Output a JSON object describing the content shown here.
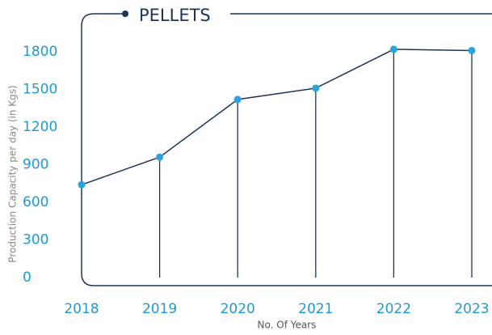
{
  "chart_data": {
    "type": "line",
    "title": "PELLETS",
    "x_label": "No. Of Years",
    "y_label": "Production Capacity per day (in Kgs)",
    "categories": [
      "2018",
      "2019",
      "2020",
      "2021",
      "2022",
      "2023"
    ],
    "series": [
      {
        "name": "PELLETS",
        "color": "#1c3557",
        "marker_color": "#29a3dc",
        "values": [
          740,
          960,
          1420,
          1510,
          1820,
          1810
        ]
      }
    ],
    "ylim": [
      0,
      1900
    ],
    "yticks": [
      0,
      300,
      600,
      900,
      1200,
      1500,
      1800
    ]
  }
}
